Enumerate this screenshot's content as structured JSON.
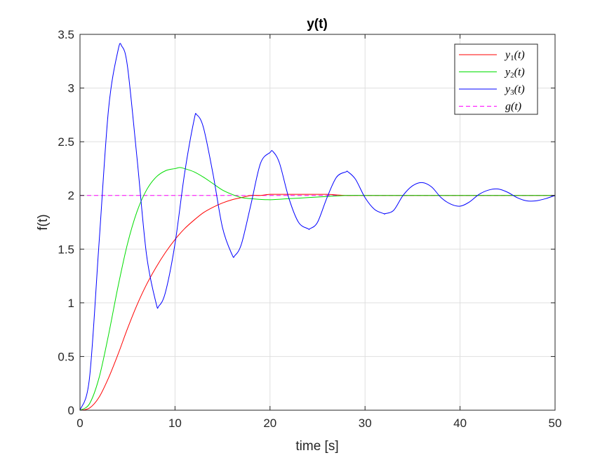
{
  "chart_data": {
    "type": "line",
    "title": "y(t)",
    "xlabel": "time [s]",
    "ylabel": "f(t)",
    "xlim": [
      0,
      50
    ],
    "ylim": [
      0,
      3.5
    ],
    "x_ticks": [
      0,
      10,
      20,
      30,
      40,
      50
    ],
    "y_ticks": [
      0,
      0.5,
      1,
      1.5,
      2,
      2.5,
      3,
      3.5
    ],
    "x_tick_labels": [
      "0",
      "10",
      "20",
      "30",
      "40",
      "50"
    ],
    "y_tick_labels": [
      "0",
      "0.5",
      "1",
      "1.5",
      "2",
      "2.5",
      "3",
      "3.5"
    ],
    "grid": true,
    "legend_position": "top-right",
    "series": [
      {
        "name": "y1(t)",
        "label_base": "y",
        "label_sub": "1",
        "label_arg": "(t)",
        "color": "#ff0000",
        "dash": "solid",
        "x": [
          0,
          1,
          2,
          3,
          4,
          5,
          6,
          7,
          8,
          9,
          10,
          11,
          12,
          13,
          14,
          15,
          16,
          17,
          18,
          19,
          20,
          22,
          24,
          26,
          28,
          30,
          35,
          40,
          45,
          50
        ],
        "y": [
          0,
          0.02,
          0.12,
          0.3,
          0.52,
          0.76,
          0.98,
          1.17,
          1.33,
          1.47,
          1.59,
          1.69,
          1.77,
          1.84,
          1.89,
          1.93,
          1.96,
          1.98,
          2.0,
          2.0,
          2.01,
          2.01,
          2.01,
          2.01,
          2.0,
          2.0,
          2.0,
          2.0,
          2.0,
          2.0
        ]
      },
      {
        "name": "y2(t)",
        "label_base": "y",
        "label_sub": "2",
        "label_arg": "(t)",
        "color": "#00dd00",
        "dash": "solid",
        "x": [
          0,
          1,
          2,
          3,
          4,
          5,
          6,
          7,
          8,
          9,
          10,
          10.5,
          11,
          12,
          13,
          14,
          15,
          16,
          17,
          18,
          20,
          22,
          24,
          26,
          28,
          30,
          35,
          40,
          45,
          50
        ],
        "y": [
          0,
          0.06,
          0.3,
          0.7,
          1.15,
          1.55,
          1.85,
          2.05,
          2.17,
          2.23,
          2.25,
          2.26,
          2.25,
          2.22,
          2.17,
          2.11,
          2.05,
          2.01,
          1.98,
          1.97,
          1.96,
          1.97,
          1.98,
          1.99,
          2.0,
          2.0,
          2.0,
          2.0,
          2.0,
          2.0
        ]
      },
      {
        "name": "y3(t)",
        "label_base": "y",
        "label_sub": "3",
        "label_arg": "(t)",
        "color": "#0000ff",
        "dash": "solid",
        "x": [
          0,
          1,
          2,
          3,
          4,
          4.4,
          5,
          6,
          7,
          8,
          8.3,
          9,
          10,
          11,
          12,
          12.3,
          13,
          14,
          15,
          16,
          16.3,
          17,
          18,
          19,
          20,
          20.3,
          21,
          22,
          23,
          24,
          24.2,
          25,
          26,
          27,
          28,
          28.2,
          29,
          30,
          31,
          32,
          32.1,
          33,
          34,
          35,
          36,
          37,
          38,
          39,
          40,
          41,
          42,
          43,
          44,
          45,
          46,
          47,
          48,
          49,
          50
        ],
        "y": [
          0,
          0.3,
          1.55,
          2.8,
          3.35,
          3.39,
          3.2,
          2.35,
          1.45,
          1.0,
          0.97,
          1.1,
          1.55,
          2.2,
          2.7,
          2.75,
          2.63,
          2.2,
          1.7,
          1.45,
          1.44,
          1.55,
          1.92,
          2.3,
          2.4,
          2.41,
          2.3,
          1.97,
          1.75,
          1.69,
          1.69,
          1.75,
          1.98,
          2.17,
          2.22,
          2.22,
          2.15,
          1.98,
          1.87,
          1.83,
          1.83,
          1.86,
          2.0,
          2.09,
          2.12,
          2.08,
          1.98,
          1.92,
          1.9,
          1.94,
          2.01,
          2.05,
          2.06,
          2.03,
          1.98,
          1.95,
          1.95,
          1.97,
          2.0
        ]
      },
      {
        "name": "g(t)",
        "label_base": "g",
        "label_sub": "",
        "label_arg": "(t)",
        "color": "#ff00ff",
        "dash": "dashed",
        "x": [
          0,
          50
        ],
        "y": [
          2,
          2
        ]
      }
    ]
  }
}
